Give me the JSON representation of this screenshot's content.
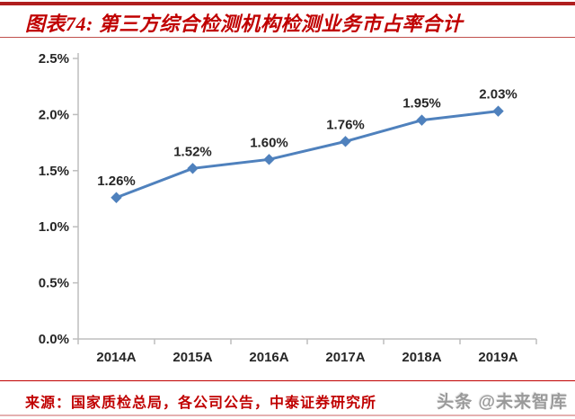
{
  "header": {
    "title": "图表74: 第三方综合检测机构检测业务市占率合计"
  },
  "chart_data": {
    "type": "line",
    "categories": [
      "2014A",
      "2015A",
      "2016A",
      "2017A",
      "2018A",
      "2019A"
    ],
    "values": [
      1.26,
      1.52,
      1.6,
      1.76,
      1.95,
      2.03
    ],
    "data_labels": [
      "1.26%",
      "1.52%",
      "1.60%",
      "1.76%",
      "1.95%",
      "2.03%"
    ],
    "title": "",
    "xlabel": "",
    "ylabel": "",
    "ylim": [
      0,
      2.5
    ],
    "ytick_step": 0.5,
    "ytick_labels": [
      "0.0%",
      "0.5%",
      "1.0%",
      "1.5%",
      "2.0%",
      "2.5%"
    ],
    "grid": false,
    "legend": "none",
    "marker": "diamond"
  },
  "footer": {
    "source": "来源：国家质检总局，各公司公告，中泰证券研究所",
    "watermark": "头条 @未来智库"
  },
  "colors": {
    "accent_red": "#c00000",
    "line_blue": "#4f81bd",
    "axis_gray": "#bdbdbd",
    "label_dark": "#262626"
  }
}
